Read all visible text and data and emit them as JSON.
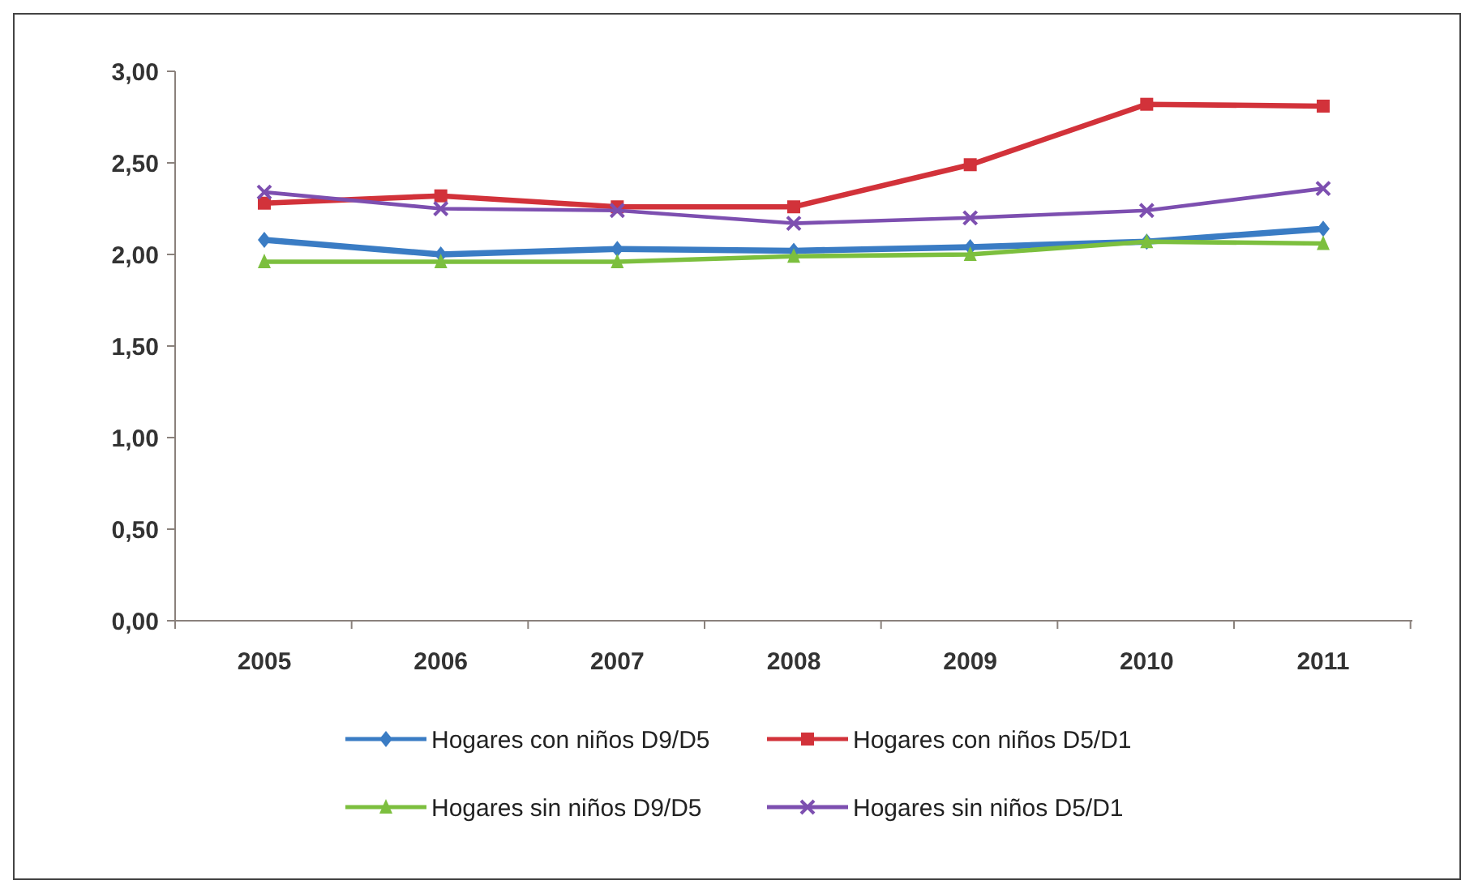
{
  "chart_data": {
    "type": "line",
    "categories": [
      "2005",
      "2006",
      "2007",
      "2008",
      "2009",
      "2010",
      "2011"
    ],
    "ylim": [
      0,
      3
    ],
    "yticks": [
      {
        "value": 0,
        "label": "0,00"
      },
      {
        "value": 0.5,
        "label": "0,50"
      },
      {
        "value": 1,
        "label": "1,00"
      },
      {
        "value": 1.5,
        "label": "1,50"
      },
      {
        "value": 2,
        "label": "2,00"
      },
      {
        "value": 2.5,
        "label": "2,50"
      },
      {
        "value": 3,
        "label": "3,00"
      }
    ],
    "grid": false,
    "legend": "bottom",
    "series": [
      {
        "name": "Hogares con niños D9/D5",
        "color": "#3a7cc4",
        "marker": "diamond",
        "values": [
          2.08,
          2.0,
          2.03,
          2.02,
          2.04,
          2.07,
          2.14
        ]
      },
      {
        "name": "Hogares con niños D5/D1",
        "color": "#d2323a",
        "marker": "square",
        "values": [
          2.28,
          2.32,
          2.26,
          2.26,
          2.49,
          2.82,
          2.81
        ]
      },
      {
        "name": "Hogares sin niños D9/D5",
        "color": "#7cbf3e",
        "marker": "triangle",
        "values": [
          1.96,
          1.96,
          1.96,
          1.99,
          2.0,
          2.07,
          2.06
        ]
      },
      {
        "name": "Hogares sin niños D5/D1",
        "color": "#7d4fb0",
        "marker": "cross",
        "values": [
          2.34,
          2.25,
          2.24,
          2.17,
          2.2,
          2.24,
          2.36
        ]
      }
    ]
  }
}
